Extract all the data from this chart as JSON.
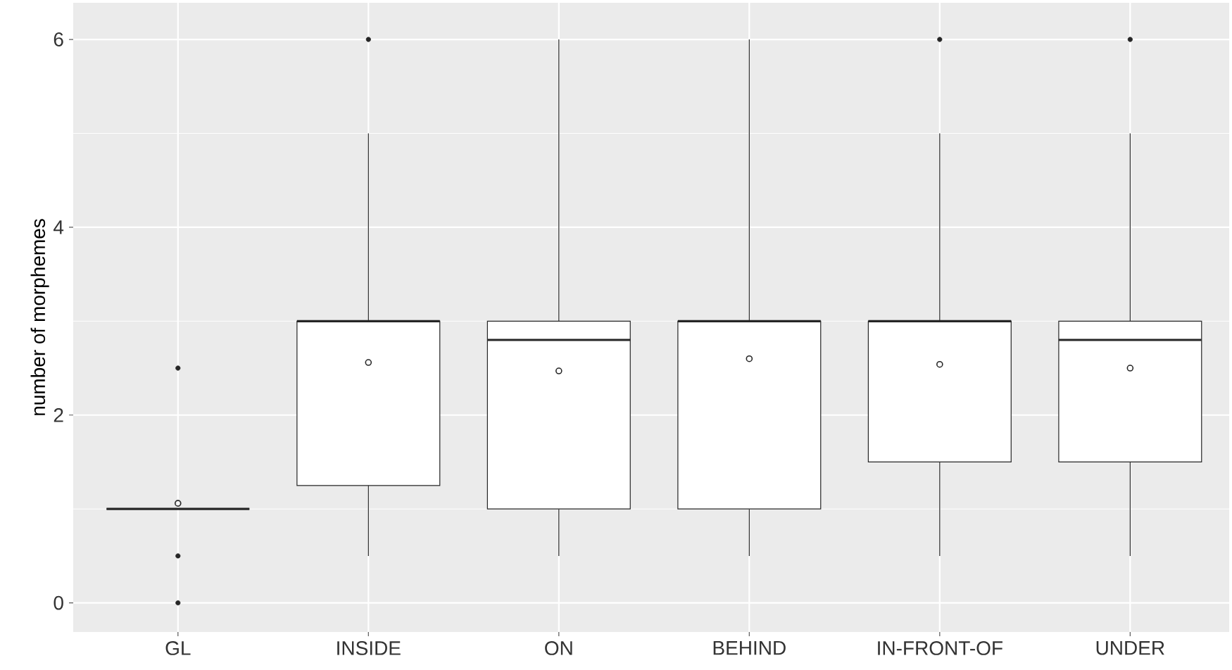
{
  "chart_data": {
    "type": "box",
    "ylabel": "number of morphemes",
    "categories": [
      "GL",
      "INSIDE",
      "ON",
      "BEHIND",
      "IN-FRONT-OF",
      "UNDER"
    ],
    "ylim": [
      -0.31,
      6.39
    ],
    "yticks": [
      0,
      2,
      4,
      6
    ],
    "grid": true,
    "boxes": [
      {
        "low": 1,
        "q1": 1,
        "median": 1,
        "q3": 1,
        "high": 1,
        "mean": 1.06,
        "outliers": [
          2.5,
          0.5,
          0
        ]
      },
      {
        "low": 0.5,
        "q1": 1.25,
        "median": 3,
        "q3": 3,
        "high": 5,
        "mean": 2.56,
        "outliers": [
          6
        ]
      },
      {
        "low": 0.5,
        "q1": 1,
        "median": 2.8,
        "q3": 3,
        "high": 6,
        "mean": 2.47
      },
      {
        "low": 0.5,
        "q1": 1,
        "median": 3,
        "q3": 3,
        "high": 6,
        "mean": 2.6
      },
      {
        "low": 0.5,
        "q1": 1.5,
        "median": 3,
        "q3": 3,
        "high": 5,
        "mean": 2.54,
        "outliers": [
          6
        ]
      },
      {
        "low": 0.5,
        "q1": 1.5,
        "median": 2.8,
        "q3": 3,
        "high": 5,
        "mean": 2.5,
        "outliers": [
          6
        ]
      }
    ]
  }
}
